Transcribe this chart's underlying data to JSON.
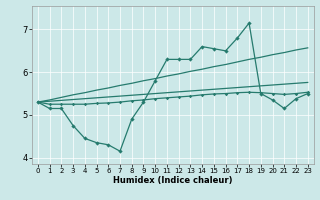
{
  "xlabel": "Humidex (Indice chaleur)",
  "background_color": "#cce8e8",
  "grid_color": "#ffffff",
  "line_color": "#267b6e",
  "x": [
    0,
    1,
    2,
    3,
    4,
    5,
    6,
    7,
    8,
    9,
    10,
    11,
    12,
    13,
    14,
    15,
    16,
    17,
    18,
    19,
    20,
    21,
    22,
    23
  ],
  "y_main": [
    5.3,
    5.15,
    5.15,
    4.75,
    4.45,
    4.35,
    4.3,
    4.15,
    4.9,
    5.3,
    5.8,
    6.3,
    6.3,
    6.3,
    6.6,
    6.55,
    6.5,
    6.8,
    7.15,
    5.5,
    5.35,
    5.15,
    5.38,
    5.5
  ],
  "y_flat": [
    5.3,
    5.25,
    5.25,
    5.25,
    5.25,
    5.27,
    5.28,
    5.3,
    5.33,
    5.35,
    5.38,
    5.4,
    5.42,
    5.44,
    5.47,
    5.49,
    5.5,
    5.52,
    5.53,
    5.52,
    5.5,
    5.48,
    5.5,
    5.53
  ],
  "y_trend_steep": [
    5.3,
    5.35,
    5.41,
    5.47,
    5.52,
    5.58,
    5.63,
    5.69,
    5.74,
    5.8,
    5.85,
    5.91,
    5.96,
    6.02,
    6.07,
    6.13,
    6.18,
    6.24,
    6.3,
    6.35,
    6.41,
    6.46,
    6.52,
    6.57
  ],
  "y_trend_shallow": [
    5.3,
    5.32,
    5.34,
    5.36,
    5.38,
    5.4,
    5.42,
    5.44,
    5.46,
    5.48,
    5.5,
    5.52,
    5.54,
    5.56,
    5.58,
    5.6,
    5.62,
    5.64,
    5.66,
    5.68,
    5.7,
    5.72,
    5.74,
    5.76
  ],
  "ylim": [
    3.85,
    7.55
  ],
  "yticks": [
    4,
    5,
    6,
    7
  ],
  "xlim": [
    -0.5,
    23.5
  ],
  "xticks": [
    0,
    1,
    2,
    3,
    4,
    5,
    6,
    7,
    8,
    9,
    10,
    11,
    12,
    13,
    14,
    15,
    16,
    17,
    18,
    19,
    20,
    21,
    22,
    23
  ]
}
